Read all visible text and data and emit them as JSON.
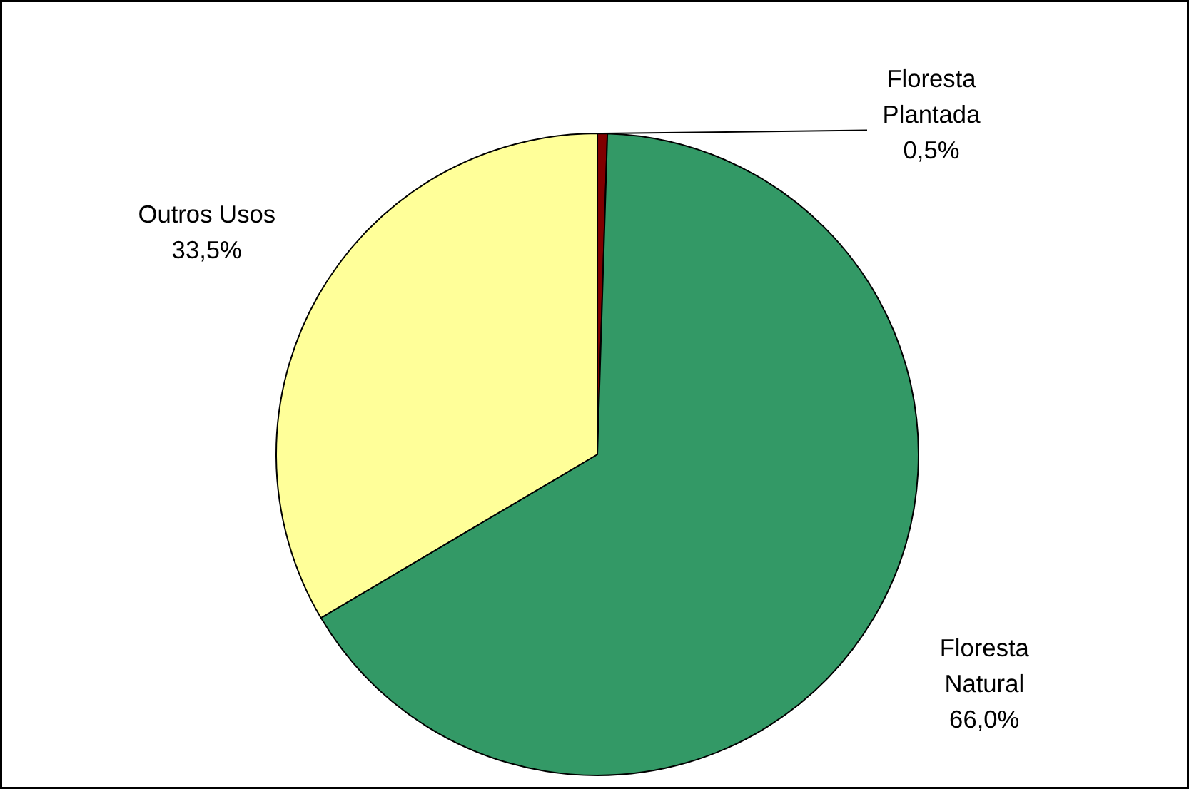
{
  "chart_data": {
    "type": "pie",
    "categories": [
      "Floresta Plantada",
      "Floresta Natural",
      "Outros Usos"
    ],
    "values": [
      0.5,
      66.0,
      33.5
    ],
    "colors": [
      "#800000",
      "#339966",
      "#ffff99"
    ],
    "value_labels": [
      "0,5%",
      "66,0%",
      "33,5%"
    ]
  }
}
